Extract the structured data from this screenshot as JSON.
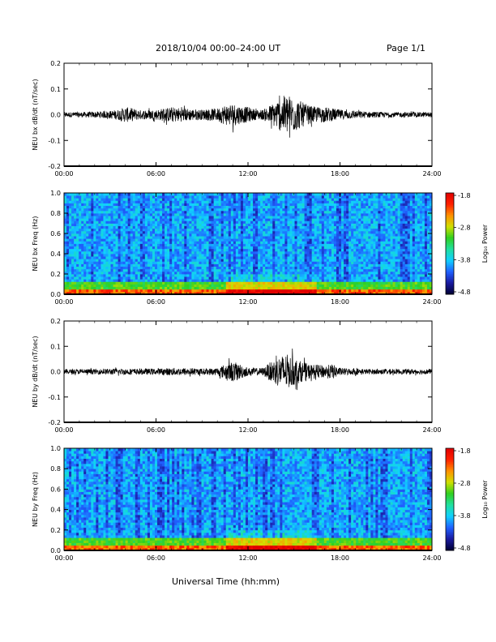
{
  "header": {
    "title": "2018/10/04  00:00–24:00 UT",
    "page": "Page 1/1"
  },
  "xaxis_label": "Universal Time (hh:mm)",
  "colorbar": {
    "label": "Log₁₀ Power",
    "ticks": [
      "-1.8",
      "-2.8",
      "-3.8",
      "-4.8"
    ],
    "range": [
      -4.8,
      -1.8
    ],
    "colormap": [
      "#000033",
      "#1a1aa0",
      "#2060ff",
      "#10d0ff",
      "#20e0a0",
      "#30d020",
      "#d0e000",
      "#ff9000",
      "#ff2000",
      "#e00000"
    ]
  },
  "chart_data": [
    {
      "type": "line",
      "name": "panel-bx-timeseries",
      "ylabel": "NEU bx dB/dt (nT/sec)",
      "ylim": [
        -0.2,
        0.2
      ],
      "yticks": [
        "0.2",
        "0.1",
        "0.0",
        "-0.1",
        "-0.2"
      ],
      "xlim": [
        0,
        24
      ],
      "xticks": [
        "00:00",
        "06:00",
        "12:00",
        "18:00",
        "24:00"
      ],
      "envelope": {
        "hours": [
          0,
          1,
          2,
          3,
          3.5,
          4,
          4.5,
          5,
          6,
          6.5,
          7,
          8,
          9,
          10,
          10.5,
          11,
          11.5,
          12,
          12.5,
          13,
          14,
          14.5,
          15,
          15.5,
          16,
          16.5,
          17,
          17.5,
          18,
          19,
          20,
          21,
          22,
          23,
          24
        ],
        "amplitude": [
          0.01,
          0.01,
          0.012,
          0.015,
          0.02,
          0.03,
          0.025,
          0.018,
          0.02,
          0.025,
          0.03,
          0.025,
          0.02,
          0.025,
          0.04,
          0.045,
          0.035,
          0.03,
          0.02,
          0.02,
          0.06,
          0.08,
          0.07,
          0.05,
          0.035,
          0.03,
          0.03,
          0.025,
          0.02,
          0.015,
          0.012,
          0.01,
          0.01,
          0.01,
          0.01
        ]
      }
    },
    {
      "type": "heatmap",
      "name": "panel-bx-spectrogram",
      "ylabel": "NEU bx Freq (Hz)",
      "ylim": [
        0.0,
        1.0
      ],
      "yticks": [
        "1.0",
        "0.8",
        "0.6",
        "0.4",
        "0.2",
        "0.0"
      ],
      "xlim": [
        0,
        24
      ],
      "xticks": [
        "00:00",
        "06:00",
        "12:00",
        "18:00",
        "24:00"
      ],
      "zlim": [
        -4.8,
        -1.8
      ]
    },
    {
      "type": "line",
      "name": "panel-by-timeseries",
      "ylabel": "NEU by dB/dt (nT/sec)",
      "ylim": [
        -0.2,
        0.2
      ],
      "yticks": [
        "0.2",
        "0.1",
        "0.0",
        "-0.1",
        "-0.2"
      ],
      "xlim": [
        0,
        24
      ],
      "xticks": [
        "00:00",
        "06:00",
        "12:00",
        "18:00",
        "24:00"
      ],
      "envelope": {
        "hours": [
          0,
          1,
          2,
          3,
          4,
          5,
          6,
          7,
          8,
          9,
          10,
          10.5,
          11,
          11.5,
          12,
          13,
          13.5,
          14,
          14.5,
          15,
          15.5,
          16,
          17,
          17.5,
          18,
          19,
          20,
          21,
          22,
          23,
          24
        ],
        "amplitude": [
          0.01,
          0.01,
          0.01,
          0.012,
          0.012,
          0.012,
          0.012,
          0.015,
          0.015,
          0.012,
          0.015,
          0.03,
          0.04,
          0.03,
          0.015,
          0.015,
          0.04,
          0.06,
          0.07,
          0.055,
          0.04,
          0.03,
          0.025,
          0.03,
          0.015,
          0.012,
          0.01,
          0.01,
          0.01,
          0.01,
          0.01
        ]
      }
    },
    {
      "type": "heatmap",
      "name": "panel-by-spectrogram",
      "ylabel": "NEU by Freq (Hz)",
      "ylim": [
        0.0,
        1.0
      ],
      "yticks": [
        "1.0",
        "0.8",
        "0.6",
        "0.4",
        "0.2",
        "0.0"
      ],
      "xlim": [
        0,
        24
      ],
      "xticks": [
        "00:00",
        "06:00",
        "12:00",
        "18:00",
        "24:00"
      ],
      "zlim": [
        -4.8,
        -1.8
      ]
    }
  ]
}
